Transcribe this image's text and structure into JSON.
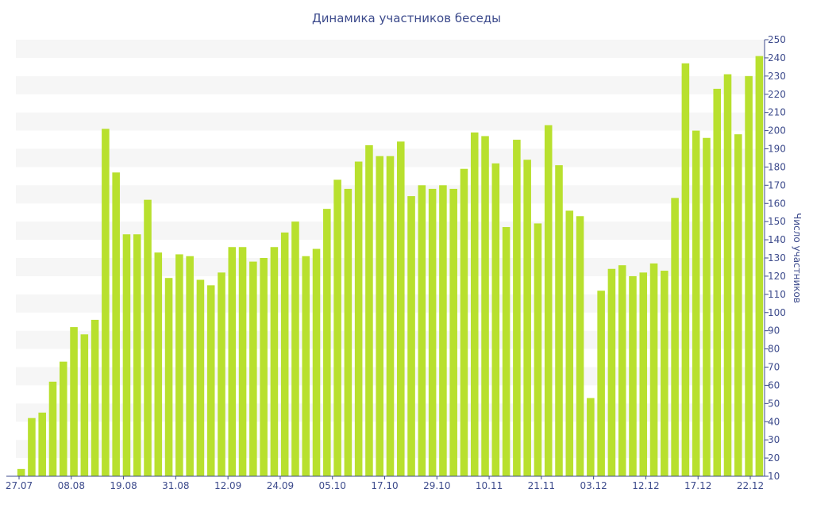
{
  "chart_data": {
    "type": "bar",
    "title": "Динамика участников беседы",
    "ylabel": "Число участников",
    "xlabel": "",
    "ylim": [
      10,
      250
    ],
    "y_ticks": [
      10,
      20,
      30,
      40,
      50,
      60,
      70,
      80,
      90,
      100,
      110,
      120,
      130,
      140,
      150,
      160,
      170,
      180,
      190,
      200,
      210,
      220,
      230,
      240,
      250
    ],
    "x_tick_labels": [
      "27.07",
      "08.08",
      "19.08",
      "31.08",
      "12.09",
      "24.09",
      "05.10",
      "17.10",
      "29.10",
      "10.11",
      "21.11",
      "03.12",
      "12.12",
      "17.12",
      "22.12"
    ],
    "values": [
      14,
      42,
      45,
      62,
      73,
      92,
      88,
      96,
      201,
      177,
      143,
      143,
      162,
      133,
      119,
      132,
      131,
      118,
      115,
      122,
      136,
      136,
      128,
      130,
      136,
      144,
      150,
      131,
      135,
      157,
      173,
      168,
      183,
      192,
      186,
      186,
      194,
      164,
      170,
      168,
      170,
      168,
      179,
      199,
      197,
      182,
      147,
      195,
      184,
      149,
      203,
      181,
      156,
      153,
      53,
      112,
      124,
      126,
      120,
      122,
      127,
      123,
      163,
      237,
      200,
      196,
      223,
      231,
      198,
      230,
      241
    ],
    "bar_color": "#b8e02e",
    "band_color": "#f6f6f6",
    "axis_color": "#3d4b8c",
    "grid": true,
    "legend": "none"
  }
}
